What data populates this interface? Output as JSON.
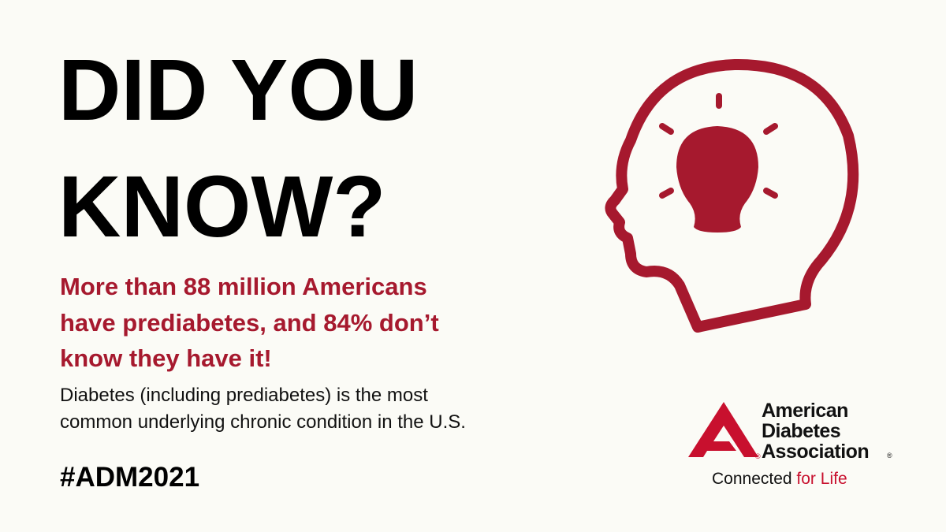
{
  "headline": {
    "lines": [
      "DID YOU",
      "KNOW?"
    ]
  },
  "highlight": {
    "lines": [
      "More than 88 million Americans",
      "have prediabetes, and 84% don’t",
      "know they have it!"
    ]
  },
  "body": {
    "lines": [
      "Diabetes (including prediabetes) is the most",
      "common underlying chronic condition in the U.S."
    ]
  },
  "hashtag": "#ADM2021",
  "logo": {
    "name_lines": [
      "American",
      "Diabetes",
      "Association"
    ],
    "registered": "®",
    "tagline": {
      "start": "Connected",
      "end": "for Life"
    }
  }
}
